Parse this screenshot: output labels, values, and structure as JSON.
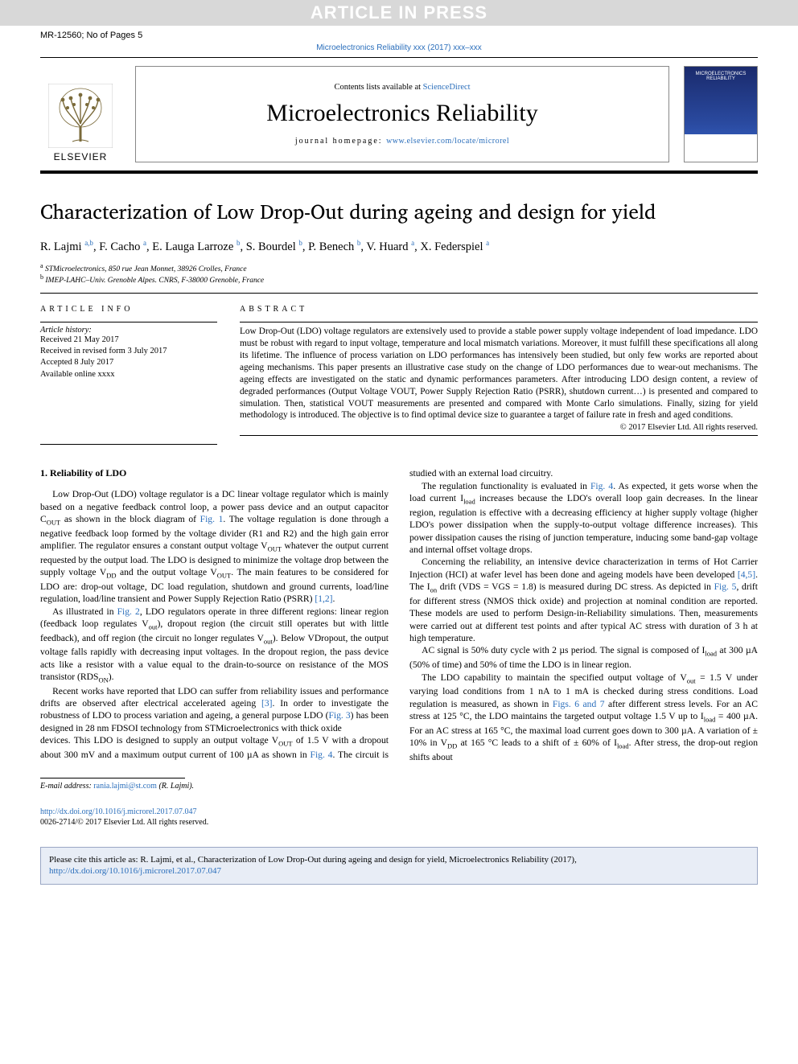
{
  "banner": {
    "text": "ARTICLE IN PRESS"
  },
  "header_meta": {
    "manuscript": "MR-12560; No of Pages 5"
  },
  "journal_ref": "Microelectronics Reliability xxx (2017) xxx–xxx",
  "masthead": {
    "contents_prefix": "Contents lists available at ",
    "contents_link": "ScienceDirect",
    "journal_title": "Microelectronics Reliability",
    "homepage_prefix": "journal homepage: ",
    "homepage_url": "www.elsevier.com/locate/microrel",
    "publisher_word": "ELSEVIER",
    "cover_title": "MICROELECTRONICS RELIABILITY"
  },
  "article": {
    "title": "Characterization of Low Drop-Out during ageing and design for yield",
    "authors_html": "R. Lajmi <sup><a class='aff-link' href='#'>a,b</a></sup>, F. Cacho <sup><a class='aff-link' href='#'>a</a></sup>, E. Lauga Larroze <sup><a class='aff-link' href='#'>b</a></sup>, S. Bourdel <sup><a class='aff-link' href='#'>b</a></sup>, P. Benech <sup><a class='aff-link' href='#'>b</a></sup>, V. Huard <sup><a class='aff-link' href='#'>a</a></sup>, X. Federspiel <sup><a class='aff-link' href='#'>a</a></sup>",
    "affiliations": [
      {
        "sup": "a",
        "text": "STMicroelectronics, 850 rue Jean Monnet, 38926 Crolles, France"
      },
      {
        "sup": "b",
        "text": "IMEP-LAHC–Univ. Grenoble Alpes. CNRS, F-38000 Grenoble, France"
      }
    ]
  },
  "info": {
    "heading": "ARTICLE INFO",
    "history_label": "Article history:",
    "lines": [
      "Received 21 May 2017",
      "Received in revised form 3 July 2017",
      "Accepted 8 July 2017",
      "Available online xxxx"
    ]
  },
  "abstract": {
    "heading": "ABSTRACT",
    "text": "Low Drop-Out (LDO) voltage regulators are extensively used to provide a stable power supply voltage independent of load impedance. LDO must be robust with regard to input voltage, temperature and local mismatch variations. Moreover, it must fulfill these specifications all along its lifetime. The influence of process variation on LDO performances has intensively been studied, but only few works are reported about ageing mechanisms. This paper presents an illustrative case study on the change of LDO performances due to wear-out mechanisms. The ageing effects are investigated on the static and dynamic performances parameters. After introducing LDO design content, a review of degraded performances (Output Voltage VOUT, Power Supply Rejection Ratio (PSRR), shutdown current…) is presented and compared to simulation. Then, statistical VOUT measurements are presented and compared with Monte Carlo simulations. Finally, sizing for yield methodology is introduced. The objective is to find optimal device size to guarantee a target of failure rate in fresh and aged conditions.",
    "copyright": "© 2017 Elsevier Ltd. All rights reserved."
  },
  "body": {
    "section1_title": "1. Reliability of LDO",
    "col1_p1_html": "Low Drop-Out (LDO) voltage regulator is a DC linear voltage regulator which is mainly based on a negative feedback control loop, a power pass device and an output capacitor C<sub>OUT</sub> as shown in the block diagram of <a class='ref-link' href='#'>Fig. 1</a>. The voltage regulation is done through a negative feedback loop formed by the voltage divider (R1 and R2) and the high gain error amplifier. The regulator ensures a constant output voltage V<sub>OUT</sub> whatever the output current requested by the output load. The LDO is designed to minimize the voltage drop between the supply voltage V<sub>DD</sub> and the output voltage V<sub>OUT</sub>. The main features to be considered for LDO are: drop-out voltage, DC load regulation, shutdown and ground currents, load/line regulation, load/line transient and Power Supply Rejection Ratio (PSRR) <a class='ref-link' href='#'>[1,2]</a>.",
    "col1_p2_html": "As illustrated in <a class='ref-link' href='#'>Fig. 2</a>, LDO regulators operate in three different regions: linear region (feedback loop regulates V<sub>out</sub>), dropout region (the circuit still operates but with little feedback), and off region (the circuit no longer regulates V<sub>out</sub>). Below VDropout, the output voltage falls rapidly with decreasing input voltages. In the dropout region, the pass device acts like a resistor with a value equal to the drain-to-source on resistance of the MOS transistor (RDS<sub>ON</sub>).",
    "col1_p3_html": "Recent works have reported that LDO can suffer from reliability issues and performance drifts are observed after electrical accelerated ageing <a class='ref-link' href='#'>[3]</a>. In order to investigate the robustness of LDO to process variation and ageing, a general purpose LDO (<a class='ref-link' href='#'>Fig. 3</a>) has been designed in 28 nm FDSOI technology from STMicroelectronics with thick oxide",
    "col2_p1_html": "devices. This LDO is designed to supply an output voltage V<sub>OUT</sub> of 1.5 V with a dropout about 300 mV and a maximum output current of 100 µA as shown in <a class='ref-link' href='#'>Fig. 4</a>. The circuit is studied with an external load circuitry.",
    "col2_p2_html": "The regulation functionality is evaluated in <a class='ref-link' href='#'>Fig. 4</a>. As expected, it gets worse when the load current I<sub>load</sub> increases because the LDO's overall loop gain decreases. In the linear region, regulation is effective with a decreasing efficiency at higher supply voltage (higher LDO's power dissipation when the supply-to-output voltage difference increases). This power dissipation causes the rising of junction temperature, inducing some band-gap voltage and internal offset voltage drops.",
    "col2_p3_html": "Concerning the reliability, an intensive device characterization in terms of Hot Carrier Injection (HCI) at wafer level has been done and ageing models have been developed <a class='ref-link' href='#'>[4,5]</a>. The I<sub>on</sub> drift (VDS = VGS = 1.8) is measured during DC stress. As depicted in <a class='ref-link' href='#'>Fig. 5</a>, drift for different stress (NMOS thick oxide) and projection at nominal condition are reported. These models are used to perform Design-in-Reliability simulations. Then, measurements were carried out at different test points and after typical AC stress with duration of 3 h at high temperature.",
    "col2_p4_html": "AC signal is 50% duty cycle with 2 µs period. The signal is composed of I<sub>load</sub> at 300 µA (50% of time) and 50% of time the LDO is in linear region.",
    "col2_p5_html": "The LDO capability to maintain the specified output voltage of V<sub>out</sub> = 1.5 V under varying load conditions from 1 nA to 1 mA is checked during stress conditions. Load regulation is measured, as shown in <a class='ref-link' href='#'>Figs. 6 and 7</a> after different stress levels. For an AC stress at 125 °C, the LDO maintains the targeted output voltage 1.5 V up to I<sub>load</sub> = 400 µA. For an AC stress at 165 °C, the maximal load current goes down to 300 µA. A variation of ± 10% in V<sub>DD</sub> at 165 °C leads to a shift of ± 60% of I<sub>load</sub>. After stress, the drop-out region shifts about"
  },
  "footer": {
    "email_label": "E-mail address: ",
    "email": "rania.lajmi@st.com",
    "email_author": " (R. Lajmi).",
    "doi_url": "http://dx.doi.org/10.1016/j.microrel.2017.07.047",
    "issn_line": "0026-2714/© 2017 Elsevier Ltd. All rights reserved."
  },
  "citebox": {
    "text_prefix": "Please cite this article as: R. Lajmi, et al., Characterization of Low Drop-Out during ageing and design for yield, Microelectronics Reliability (2017), ",
    "url": "http://dx.doi.org/10.1016/j.microrel.2017.07.047"
  },
  "colors": {
    "banner_bg": "#d8d8d8",
    "banner_text": "#ffffff",
    "link": "#2a6ebb",
    "citebox_bg": "#e8edf6",
    "citebox_border": "#9aa7c4",
    "cover_gradient_top": "#1a2a6c",
    "cover_gradient_bottom": "#3a6ad0"
  }
}
